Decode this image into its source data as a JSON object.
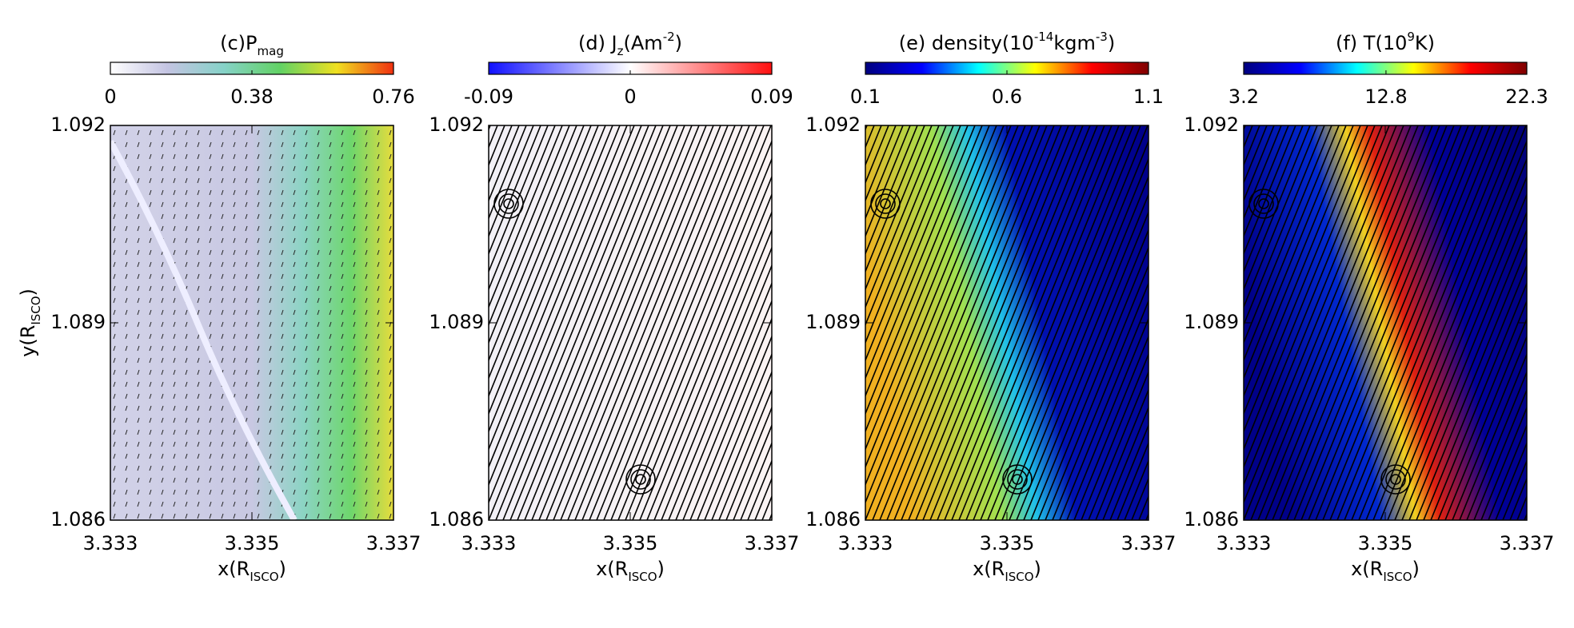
{
  "chart_data": [
    {
      "type": "heatmap",
      "title": [
        {
          "text": "(c)P"
        },
        {
          "text": "mag",
          "shift": "sub"
        }
      ],
      "clim": [
        0,
        0.76
      ],
      "colorbar_ticks": [
        0,
        0.38,
        0.76
      ],
      "colormap": [
        "#ffffff",
        "#c4c4e2",
        "#86d2c8",
        "#62d264",
        "#f0e020",
        "#f03010"
      ],
      "xlim": [
        3.333,
        3.337
      ],
      "xticks": [
        3.333,
        3.335,
        3.337
      ],
      "ylim": [
        1.086,
        1.092
      ],
      "yticks": [
        1.086,
        1.089,
        1.092
      ],
      "xlabel": [
        {
          "text": "x(R"
        },
        {
          "text": "ISCO",
          "shift": "sub"
        },
        {
          "text": ")"
        }
      ],
      "ylabel": [
        {
          "text": "y(R"
        },
        {
          "text": "ISCO",
          "shift": "sub"
        },
        {
          "text": ")"
        }
      ]
    },
    {
      "type": "heatmap",
      "title": [
        {
          "text": "(d) J"
        },
        {
          "text": "z",
          "shift": "sub"
        },
        {
          "text": "(Am"
        },
        {
          "text": "-2",
          "shift": "super"
        },
        {
          "text": ")"
        }
      ],
      "clim": [
        -0.09,
        0.09
      ],
      "colorbar_ticks": [
        -0.09,
        0,
        0.09
      ],
      "colormap": [
        "#1010ff",
        "#ffffff",
        "#ff1010"
      ],
      "xlim": [
        3.333,
        3.337
      ],
      "xticks": [
        3.333,
        3.335,
        3.337
      ],
      "ylim": [
        1.086,
        1.092
      ],
      "yticks": [
        1.086,
        1.089,
        1.092
      ],
      "xlabel": [
        {
          "text": "x(R"
        },
        {
          "text": "ISCO",
          "shift": "sub"
        },
        {
          "text": ")"
        }
      ]
    },
    {
      "type": "heatmap",
      "title": [
        {
          "text": "(e)  density(10"
        },
        {
          "text": "-14",
          "shift": "super"
        },
        {
          "text": "kgm"
        },
        {
          "text": "-3",
          "shift": "super"
        },
        {
          "text": ")"
        }
      ],
      "clim": [
        0.1,
        1.1
      ],
      "colorbar_ticks": [
        0.1,
        0.6,
        1.1
      ],
      "colormap": [
        "#00007f",
        "#0000ff",
        "#00ffff",
        "#ffff00",
        "#ff0000",
        "#7f0000"
      ],
      "xlim": [
        3.333,
        3.337
      ],
      "xticks": [
        3.333,
        3.335,
        3.337
      ],
      "ylim": [
        1.086,
        1.092
      ],
      "yticks": [
        1.086,
        1.089,
        1.092
      ],
      "xlabel": [
        {
          "text": "x(R"
        },
        {
          "text": "ISCO",
          "shift": "sub"
        },
        {
          "text": ")"
        }
      ]
    },
    {
      "type": "heatmap",
      "title": [
        {
          "text": "(f)  T(10"
        },
        {
          "text": "9",
          "shift": "super"
        },
        {
          "text": "K)"
        }
      ],
      "clim": [
        3.2,
        22.3
      ],
      "colorbar_ticks": [
        3.2,
        12.8,
        22.3
      ],
      "colormap": [
        "#00007f",
        "#0000ff",
        "#00ffff",
        "#ffff00",
        "#ff0000",
        "#7f0000"
      ],
      "xlim": [
        3.333,
        3.337
      ],
      "xticks": [
        3.333,
        3.335,
        3.337
      ],
      "ylim": [
        1.086,
        1.092
      ],
      "yticks": [
        1.086,
        1.089,
        1.092
      ],
      "xlabel": [
        {
          "text": "x(R"
        },
        {
          "text": "ISCO",
          "shift": "sub"
        },
        {
          "text": ")"
        }
      ]
    }
  ]
}
